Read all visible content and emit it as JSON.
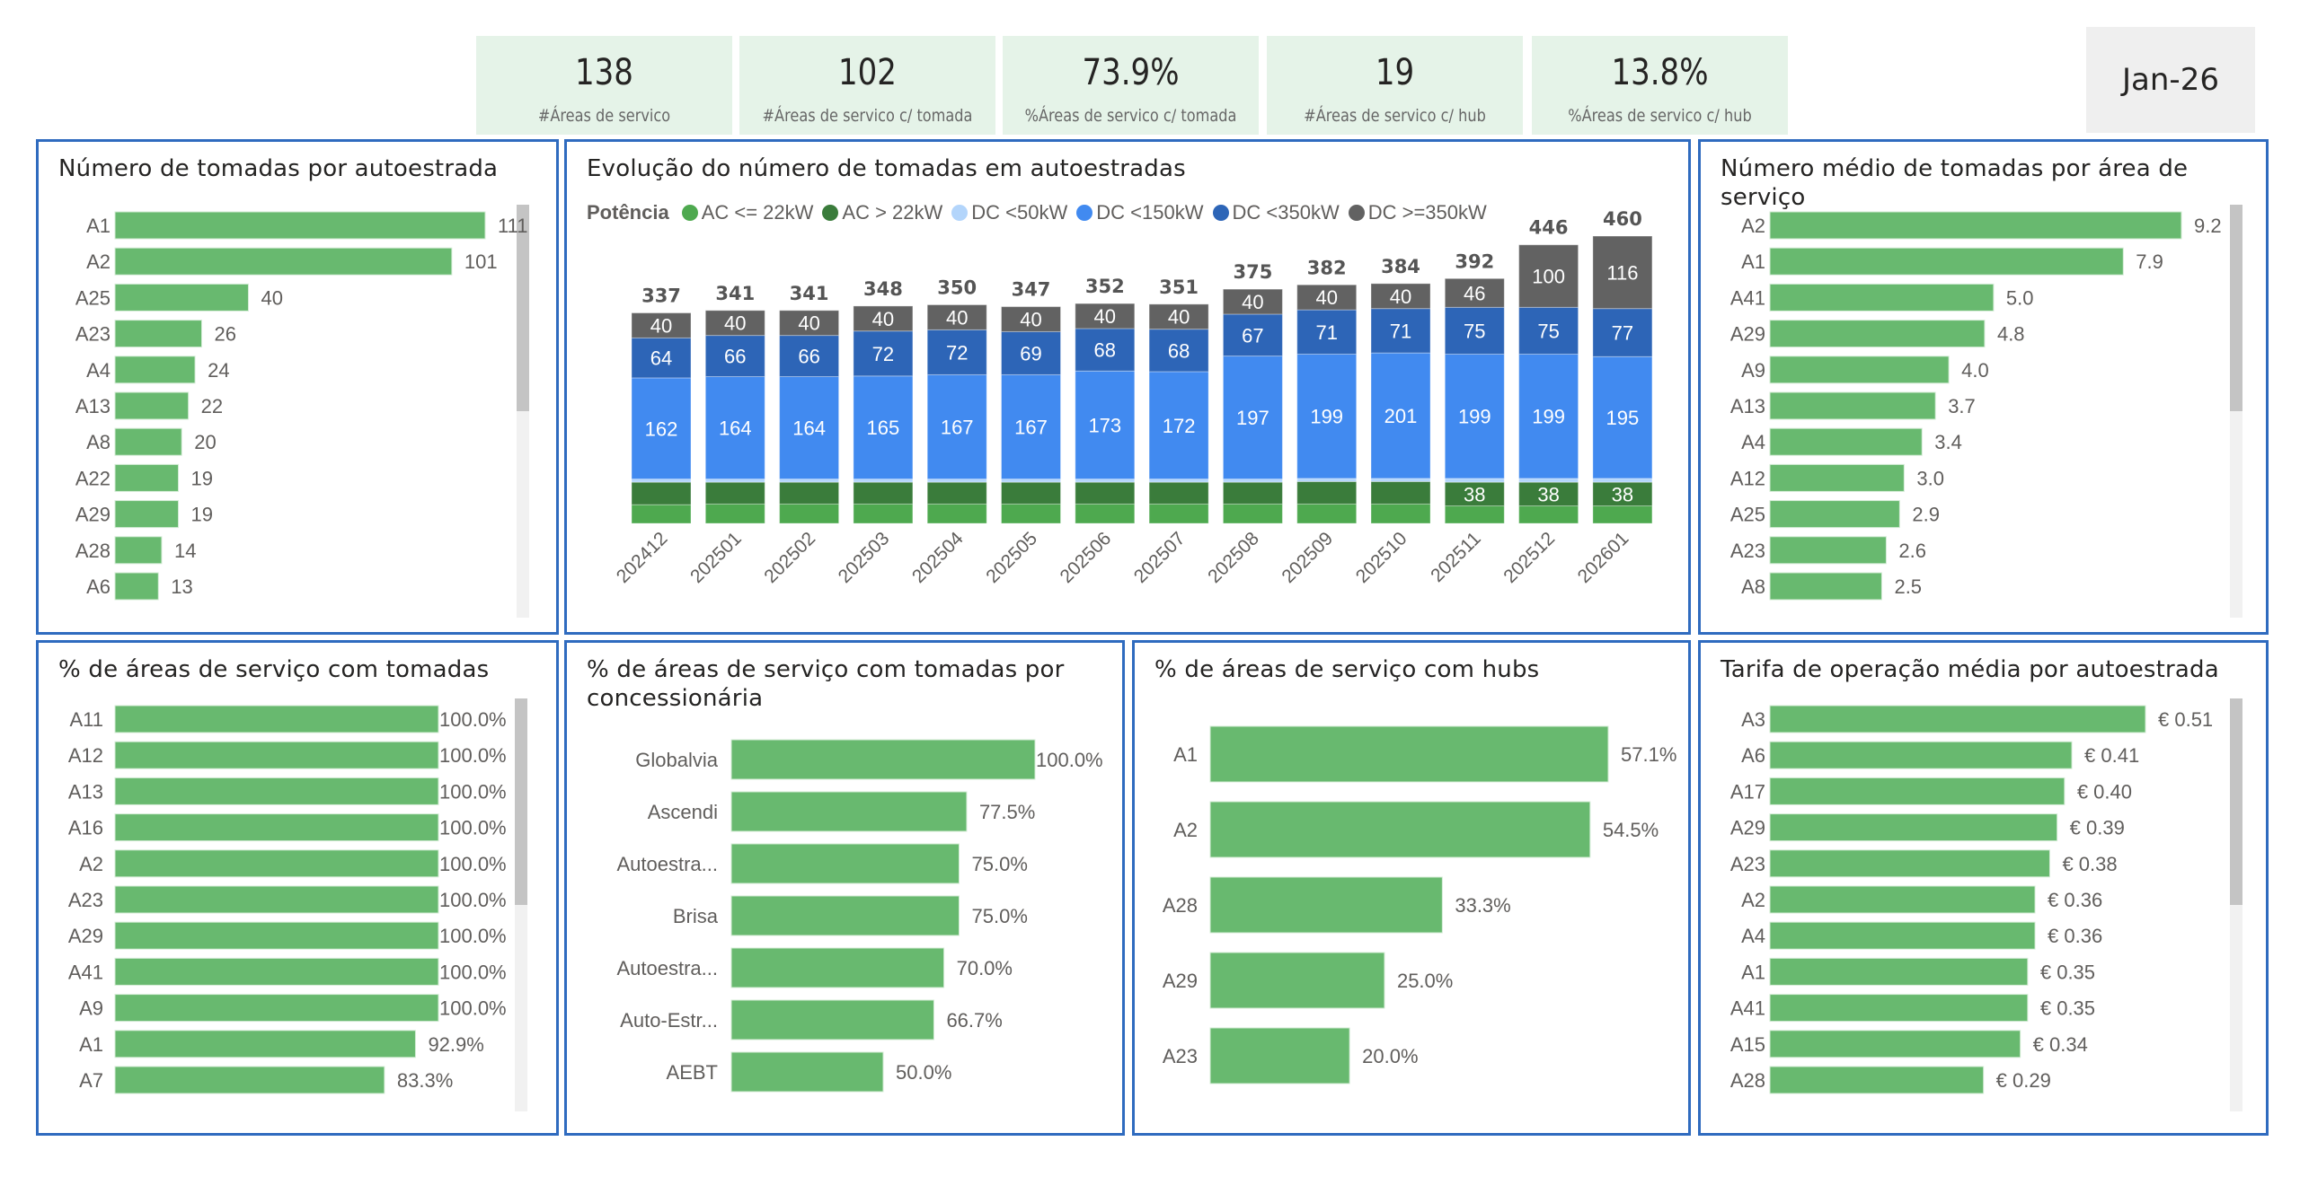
{
  "kpis": [
    {
      "value": "138",
      "label": "#Áreas de servico"
    },
    {
      "value": "102",
      "label": "#Áreas de servico c/ tomada"
    },
    {
      "value": "73.9%",
      "label": "%Áreas de servico c/ tomada"
    },
    {
      "value": "19",
      "label": "#Áreas de servico c/ hub"
    },
    {
      "value": "13.8%",
      "label": "%Áreas de servico c/ hub"
    }
  ],
  "date_filter": {
    "label": "Jan-26"
  },
  "colors": {
    "bar_green": "#68b96f",
    "border_blue": "#2f6bbf",
    "kpi_bg": "#e5f3e8",
    "ac_le_22": "#4ea94f",
    "ac_gt_22": "#3a7c3b",
    "dc_lt_50": "#b3d5fb",
    "dc_lt_150": "#418af0",
    "dc_lt_350": "#2d65b7",
    "dc_ge_350": "#626262"
  },
  "panels": {
    "tomadas_por_autoestrada": {
      "title": "Número de tomadas por autoestrada"
    },
    "evolucao": {
      "title": "Evolução do número de tomadas em autoestradas",
      "legend_title": "Potência"
    },
    "medio_por_area": {
      "title": "Número médio de tomadas por área de serviço"
    },
    "pct_com_tomadas": {
      "title": "% de áreas de serviço com tomadas"
    },
    "pct_por_concessionaria": {
      "title": "% de áreas de serviço com tomadas por concessionária"
    },
    "pct_com_hubs": {
      "title": "% de áreas de serviço com hubs"
    },
    "tarifa_media": {
      "title": "Tarifa de operação média por autoestrada"
    }
  },
  "chart_data": [
    {
      "id": "tomadas_por_autoestrada",
      "type": "bar",
      "orientation": "horizontal",
      "title": "Número de tomadas por autoestrada",
      "categories": [
        "A1",
        "A2",
        "A25",
        "A23",
        "A4",
        "A13",
        "A8",
        "A22",
        "A29",
        "A28",
        "A6"
      ],
      "values": [
        111,
        101,
        40,
        26,
        24,
        22,
        20,
        19,
        19,
        14,
        13
      ],
      "value_labels": [
        "111",
        "101",
        "40",
        "26",
        "24",
        "22",
        "20",
        "19",
        "19",
        "14",
        "13"
      ],
      "xlim": [
        0,
        111
      ],
      "scrollbar_thumb": [
        0,
        0.5
      ]
    },
    {
      "id": "evolucao",
      "type": "bar",
      "stacked": true,
      "title": "Evolução do número de tomadas em autoestradas",
      "legend_title": "Potência",
      "legend_position": "top-left",
      "categories": [
        "202412",
        "202501",
        "202502",
        "202503",
        "202504",
        "202505",
        "202506",
        "202507",
        "202508",
        "202509",
        "202510",
        "202511",
        "202512",
        "202601"
      ],
      "totals": [
        337,
        341,
        341,
        348,
        350,
        347,
        352,
        351,
        375,
        382,
        384,
        392,
        446,
        460
      ],
      "series": [
        {
          "name": "AC <= 22kW",
          "color_key": "ac_le_22",
          "values": [
            30,
            31,
            31,
            31,
            31,
            31,
            31,
            31,
            31,
            31,
            31,
            28,
            28,
            28
          ],
          "show_labels": false
        },
        {
          "name": "AC > 22kW",
          "color_key": "ac_gt_22",
          "values": [
            36,
            35,
            35,
            35,
            35,
            35,
            35,
            35,
            35,
            36,
            36,
            38,
            38,
            38
          ],
          "show_labels": [
            false,
            false,
            false,
            false,
            false,
            false,
            false,
            false,
            false,
            false,
            false,
            true,
            true,
            true
          ]
        },
        {
          "name": "DC <50kW",
          "color_key": "dc_lt_50",
          "values": [
            5,
            5,
            5,
            5,
            5,
            5,
            5,
            5,
            5,
            5,
            5,
            6,
            6,
            6
          ],
          "show_labels": false
        },
        {
          "name": "DC <150kW",
          "color_key": "dc_lt_150",
          "values": [
            162,
            164,
            164,
            165,
            167,
            167,
            173,
            172,
            197,
            199,
            201,
            199,
            199,
            195
          ],
          "show_labels": true
        },
        {
          "name": "DC <350kW",
          "color_key": "dc_lt_350",
          "values": [
            64,
            66,
            66,
            72,
            72,
            69,
            68,
            68,
            67,
            71,
            71,
            75,
            75,
            77
          ],
          "show_labels": true
        },
        {
          "name": "DC >=350kW",
          "color_key": "dc_ge_350",
          "values": [
            40,
            40,
            40,
            40,
            40,
            40,
            40,
            40,
            40,
            40,
            40,
            46,
            100,
            116
          ],
          "show_labels": true
        }
      ],
      "ylim": [
        0,
        460
      ],
      "grid": false
    },
    {
      "id": "medio_por_area",
      "type": "bar",
      "orientation": "horizontal",
      "title": "Número médio de tomadas por área de serviço",
      "categories": [
        "A2",
        "A1",
        "A41",
        "A29",
        "A9",
        "A13",
        "A4",
        "A12",
        "A25",
        "A23",
        "A8"
      ],
      "values": [
        9.2,
        7.9,
        5.0,
        4.8,
        4.0,
        3.7,
        3.4,
        3.0,
        2.9,
        2.6,
        2.5
      ],
      "value_labels": [
        "9.2",
        "7.9",
        "5.0",
        "4.8",
        "4.0",
        "3.7",
        "3.4",
        "3.0",
        "2.9",
        "2.6",
        "2.5"
      ],
      "xlim": [
        0,
        9.2
      ],
      "scrollbar_thumb": [
        0,
        0.5
      ]
    },
    {
      "id": "pct_com_tomadas",
      "type": "bar",
      "orientation": "horizontal",
      "title": "% de áreas de serviço com tomadas",
      "categories": [
        "A11",
        "A12",
        "A13",
        "A16",
        "A2",
        "A23",
        "A29",
        "A41",
        "A9",
        "A1",
        "A7"
      ],
      "values": [
        100.0,
        100.0,
        100.0,
        100.0,
        100.0,
        100.0,
        100.0,
        100.0,
        100.0,
        92.9,
        83.3
      ],
      "value_labels": [
        "100.0%",
        "100.0%",
        "100.0%",
        "100.0%",
        "100.0%",
        "100.0%",
        "100.0%",
        "100.0%",
        "100.0%",
        "92.9%",
        "83.3%"
      ],
      "xlim": [
        0,
        100
      ],
      "scrollbar_thumb": [
        0,
        0.5
      ]
    },
    {
      "id": "pct_por_concessionaria",
      "type": "bar",
      "orientation": "horizontal",
      "title": "% de áreas de serviço com tomadas por concessionária",
      "categories": [
        "Globalvia",
        "Ascendi",
        "Autoestra...",
        "Brisa",
        "Autoestra...",
        "Auto-Estr...",
        "AEBT"
      ],
      "values": [
        100.0,
        77.5,
        75.0,
        75.0,
        70.0,
        66.7,
        50.0
      ],
      "value_labels": [
        "100.0%",
        "77.5%",
        "75.0%",
        "75.0%",
        "70.0%",
        "66.7%",
        "50.0%"
      ],
      "xlim": [
        0,
        100
      ]
    },
    {
      "id": "pct_com_hubs",
      "type": "bar",
      "orientation": "horizontal",
      "title": "% de áreas de serviço com hubs",
      "categories": [
        "A1",
        "A2",
        "A28",
        "A29",
        "A23"
      ],
      "values": [
        57.1,
        54.5,
        33.3,
        25.0,
        20.0
      ],
      "value_labels": [
        "57.1%",
        "54.5%",
        "33.3%",
        "25.0%",
        "20.0%"
      ],
      "xlim": [
        0,
        57.1
      ]
    },
    {
      "id": "tarifa_media",
      "type": "bar",
      "orientation": "horizontal",
      "title": "Tarifa de operação média por autoestrada",
      "categories": [
        "A3",
        "A6",
        "A17",
        "A29",
        "A23",
        "A2",
        "A4",
        "A1",
        "A41",
        "A15",
        "A28"
      ],
      "values": [
        0.51,
        0.41,
        0.4,
        0.39,
        0.38,
        0.36,
        0.36,
        0.35,
        0.35,
        0.34,
        0.29
      ],
      "value_labels": [
        "€ 0.51",
        "€ 0.41",
        "€ 0.40",
        "€ 0.39",
        "€ 0.38",
        "€ 0.36",
        "€ 0.36",
        "€ 0.35",
        "€ 0.35",
        "€ 0.34",
        "€ 0.29"
      ],
      "xlim": [
        0,
        0.51
      ],
      "scrollbar_thumb": [
        0,
        0.5
      ]
    }
  ]
}
